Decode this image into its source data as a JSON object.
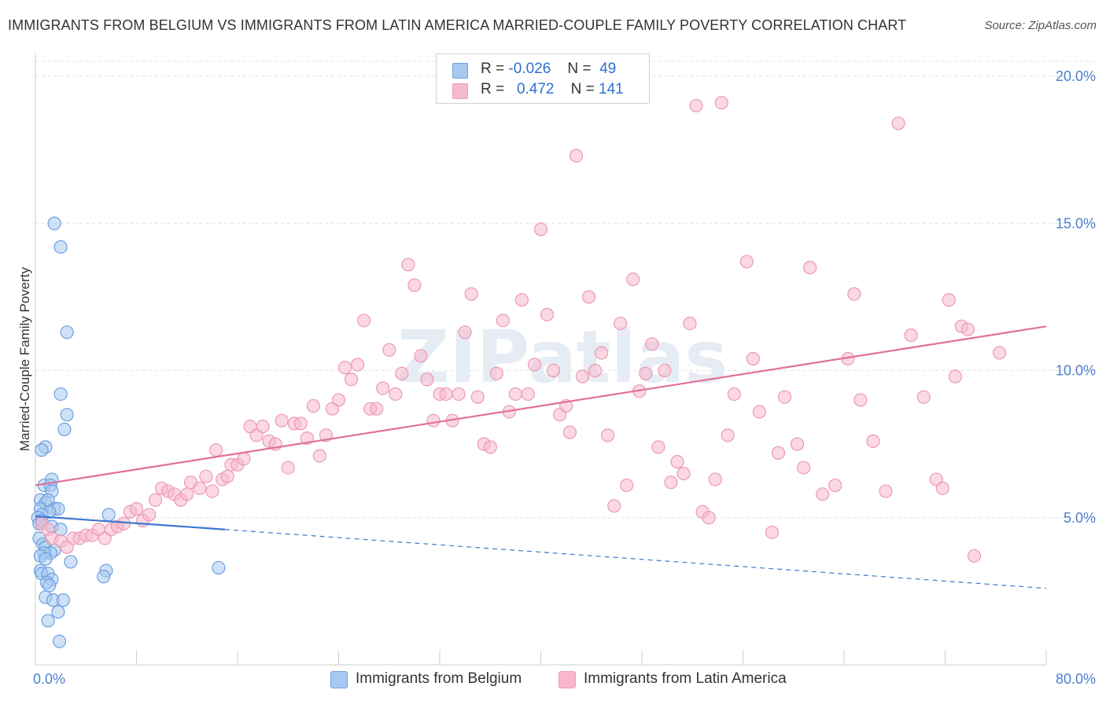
{
  "title": "IMMIGRANTS FROM BELGIUM VS IMMIGRANTS FROM LATIN AMERICA MARRIED-COUPLE FAMILY POVERTY CORRELATION CHART",
  "source": "Source: ZipAtlas.com",
  "watermark": "ZIPatlas",
  "legend": {
    "rows": [
      {
        "r_label": "R =",
        "r_value": "-0.026",
        "n_label": "N =",
        "n_value": "49",
        "color": "#a8c8f0"
      },
      {
        "r_label": "R =",
        "r_value": "0.472",
        "n_label": "N =",
        "n_value": "141",
        "color": "#f8b8cc"
      }
    ]
  },
  "bottom_legend": [
    {
      "label": "Immigrants from Belgium",
      "color": "#a8c8f0"
    },
    {
      "label": "Immigrants from Latin America",
      "color": "#f8b8cc"
    }
  ],
  "chart_data": {
    "type": "scatter",
    "ylabel": "Married-Couple Family Poverty",
    "xlabel": "",
    "xlim": [
      0,
      80
    ],
    "ylim": [
      0,
      20
    ],
    "x_tick_labels": [
      "0.0%",
      "80.0%"
    ],
    "y_tick_labels": [
      "5.0%",
      "10.0%",
      "15.0%",
      "20.0%"
    ],
    "y_ticks": [
      5,
      10,
      15,
      20
    ],
    "grid": "horizontal dashed",
    "legend_position": "top-center",
    "series": [
      {
        "name": "Immigrants from Belgium",
        "color": "#6aa0e0",
        "fill": "#a8c8f0",
        "trend": {
          "x0": 0,
          "y0": 5.05,
          "x1": 15,
          "y1": 4.6,
          "dashed_to_x": 80,
          "dashed_to_y": 2.6,
          "color": "#3a78d0"
        },
        "points": [
          [
            1.5,
            15.0
          ],
          [
            2.0,
            14.2
          ],
          [
            2.5,
            11.3
          ],
          [
            2.0,
            9.2
          ],
          [
            2.5,
            8.5
          ],
          [
            2.3,
            8.0
          ],
          [
            0.8,
            7.4
          ],
          [
            0.5,
            7.3
          ],
          [
            1.3,
            6.3
          ],
          [
            0.7,
            6.1
          ],
          [
            1.2,
            6.1
          ],
          [
            1.3,
            5.9
          ],
          [
            0.4,
            5.6
          ],
          [
            0.8,
            5.5
          ],
          [
            1.0,
            5.6
          ],
          [
            1.5,
            5.3
          ],
          [
            1.8,
            5.3
          ],
          [
            0.4,
            5.3
          ],
          [
            1.1,
            5.2
          ],
          [
            0.5,
            5.1
          ],
          [
            0.2,
            5.0
          ],
          [
            0.3,
            4.8
          ],
          [
            0.5,
            4.9
          ],
          [
            1.3,
            4.7
          ],
          [
            2.0,
            4.6
          ],
          [
            0.3,
            4.3
          ],
          [
            0.6,
            4.1
          ],
          [
            0.8,
            4.0
          ],
          [
            1.5,
            3.9
          ],
          [
            1.2,
            3.8
          ],
          [
            0.7,
            3.8
          ],
          [
            0.4,
            3.7
          ],
          [
            0.8,
            3.6
          ],
          [
            2.8,
            3.5
          ],
          [
            0.4,
            3.2
          ],
          [
            0.5,
            3.1
          ],
          [
            1.0,
            3.1
          ],
          [
            1.3,
            2.9
          ],
          [
            0.9,
            2.8
          ],
          [
            1.1,
            2.7
          ],
          [
            5.6,
            3.2
          ],
          [
            5.4,
            3.0
          ],
          [
            14.5,
            3.3
          ],
          [
            0.8,
            2.3
          ],
          [
            1.4,
            2.2
          ],
          [
            2.2,
            2.2
          ],
          [
            1.8,
            1.8
          ],
          [
            1.0,
            1.5
          ],
          [
            1.9,
            0.8
          ],
          [
            5.8,
            5.1
          ]
        ]
      },
      {
        "name": "Immigrants from Latin America",
        "color": "#ec9ab4",
        "fill": "#f8b8cc",
        "trend": {
          "x0": 0,
          "y0": 6.1,
          "x1": 80,
          "y1": 11.5,
          "color": "#e0709a"
        },
        "points": [
          [
            0.5,
            4.8
          ],
          [
            1.0,
            4.6
          ],
          [
            1.3,
            4.3
          ],
          [
            2.0,
            4.2
          ],
          [
            2.5,
            4.0
          ],
          [
            3.0,
            4.3
          ],
          [
            3.5,
            4.3
          ],
          [
            4.0,
            4.4
          ],
          [
            4.5,
            4.4
          ],
          [
            5.0,
            4.6
          ],
          [
            5.5,
            4.3
          ],
          [
            6.0,
            4.6
          ],
          [
            6.5,
            4.7
          ],
          [
            7.0,
            4.8
          ],
          [
            7.5,
            5.2
          ],
          [
            8.0,
            5.3
          ],
          [
            8.5,
            4.9
          ],
          [
            9.0,
            5.1
          ],
          [
            9.5,
            5.6
          ],
          [
            10.0,
            6.0
          ],
          [
            10.5,
            5.9
          ],
          [
            11.0,
            5.8
          ],
          [
            11.5,
            5.6
          ],
          [
            12.0,
            5.8
          ],
          [
            12.3,
            6.2
          ],
          [
            13.0,
            6.0
          ],
          [
            13.5,
            6.4
          ],
          [
            14.0,
            5.9
          ],
          [
            14.3,
            7.3
          ],
          [
            14.8,
            6.3
          ],
          [
            15.2,
            6.4
          ],
          [
            15.5,
            6.8
          ],
          [
            16.0,
            6.8
          ],
          [
            16.5,
            7.0
          ],
          [
            17.0,
            8.1
          ],
          [
            17.5,
            7.8
          ],
          [
            18.0,
            8.1
          ],
          [
            18.5,
            7.6
          ],
          [
            19.0,
            7.5
          ],
          [
            19.5,
            8.3
          ],
          [
            20.0,
            6.7
          ],
          [
            20.5,
            8.2
          ],
          [
            21.0,
            8.2
          ],
          [
            21.5,
            7.7
          ],
          [
            22.0,
            8.8
          ],
          [
            22.5,
            7.1
          ],
          [
            23.0,
            7.8
          ],
          [
            23.5,
            8.7
          ],
          [
            24.0,
            9.0
          ],
          [
            24.5,
            10.1
          ],
          [
            25.0,
            9.7
          ],
          [
            25.5,
            10.2
          ],
          [
            26.0,
            11.7
          ],
          [
            26.5,
            8.7
          ],
          [
            27.0,
            8.7
          ],
          [
            27.5,
            9.4
          ],
          [
            28.0,
            10.7
          ],
          [
            28.5,
            9.2
          ],
          [
            29.0,
            9.9
          ],
          [
            29.5,
            13.6
          ],
          [
            30.0,
            12.9
          ],
          [
            30.5,
            10.5
          ],
          [
            31.0,
            9.7
          ],
          [
            31.5,
            8.3
          ],
          [
            32.0,
            9.2
          ],
          [
            32.5,
            9.2
          ],
          [
            33.0,
            8.3
          ],
          [
            33.5,
            9.2
          ],
          [
            34.0,
            11.3
          ],
          [
            34.5,
            12.6
          ],
          [
            35.0,
            9.1
          ],
          [
            35.5,
            7.5
          ],
          [
            36.0,
            7.4
          ],
          [
            36.5,
            9.9
          ],
          [
            37.0,
            11.7
          ],
          [
            37.5,
            8.6
          ],
          [
            38.0,
            9.2
          ],
          [
            38.5,
            12.4
          ],
          [
            39.0,
            9.2
          ],
          [
            39.5,
            10.2
          ],
          [
            40.0,
            14.8
          ],
          [
            40.5,
            11.9
          ],
          [
            41.0,
            10.0
          ],
          [
            41.5,
            8.5
          ],
          [
            42.0,
            8.8
          ],
          [
            42.3,
            7.9
          ],
          [
            42.8,
            17.3
          ],
          [
            43.3,
            9.8
          ],
          [
            43.8,
            12.5
          ],
          [
            44.3,
            10.0
          ],
          [
            44.8,
            10.6
          ],
          [
            45.3,
            7.8
          ],
          [
            45.8,
            5.4
          ],
          [
            46.3,
            11.6
          ],
          [
            46.8,
            6.1
          ],
          [
            47.3,
            13.1
          ],
          [
            47.8,
            9.3
          ],
          [
            48.3,
            9.9
          ],
          [
            48.8,
            10.9
          ],
          [
            49.3,
            7.4
          ],
          [
            49.8,
            10.0
          ],
          [
            50.3,
            6.2
          ],
          [
            50.8,
            6.9
          ],
          [
            51.3,
            6.5
          ],
          [
            51.8,
            11.6
          ],
          [
            52.3,
            19.0
          ],
          [
            52.8,
            5.2
          ],
          [
            53.3,
            5.0
          ],
          [
            53.8,
            6.3
          ],
          [
            54.3,
            19.1
          ],
          [
            54.8,
            7.8
          ],
          [
            55.3,
            9.2
          ],
          [
            56.3,
            13.7
          ],
          [
            56.8,
            10.4
          ],
          [
            57.3,
            8.6
          ],
          [
            58.3,
            4.5
          ],
          [
            58.8,
            7.2
          ],
          [
            59.3,
            9.1
          ],
          [
            60.3,
            7.5
          ],
          [
            60.8,
            6.7
          ],
          [
            61.3,
            13.5
          ],
          [
            62.3,
            5.8
          ],
          [
            63.3,
            6.1
          ],
          [
            64.3,
            10.4
          ],
          [
            64.8,
            12.6
          ],
          [
            65.3,
            9.0
          ],
          [
            66.3,
            7.6
          ],
          [
            67.3,
            5.9
          ],
          [
            68.3,
            18.4
          ],
          [
            69.3,
            11.2
          ],
          [
            70.3,
            9.1
          ],
          [
            71.3,
            6.3
          ],
          [
            72.3,
            12.4
          ],
          [
            72.8,
            9.8
          ],
          [
            73.3,
            11.5
          ],
          [
            73.8,
            11.4
          ],
          [
            74.3,
            3.7
          ],
          [
            76.3,
            10.6
          ],
          [
            71.8,
            6.0
          ]
        ]
      }
    ]
  }
}
